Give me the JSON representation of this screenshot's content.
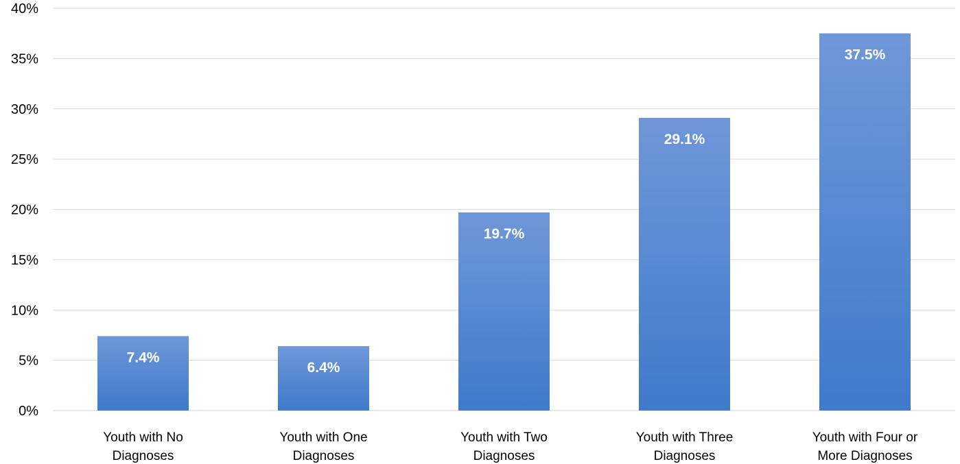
{
  "chart_data": {
    "type": "bar",
    "categories": [
      [
        "Youth with No",
        "Diagnoses"
      ],
      [
        "Youth with One",
        "Diagnoses"
      ],
      [
        "Youth with Two",
        "Diagnoses"
      ],
      [
        "Youth with Three",
        "Diagnoses"
      ],
      [
        "Youth with Four or",
        "More Diagnoses"
      ]
    ],
    "values": [
      7.4,
      6.4,
      19.7,
      29.1,
      37.5
    ],
    "data_labels": [
      "7.4%",
      "6.4%",
      "19.7%",
      "29.1%",
      "37.5%"
    ],
    "ylim": [
      0,
      40
    ],
    "y_ticks": [
      {
        "value": 0,
        "label": "0%"
      },
      {
        "value": 5,
        "label": "5%"
      },
      {
        "value": 10,
        "label": "10%"
      },
      {
        "value": 15,
        "label": "15%"
      },
      {
        "value": 20,
        "label": "20%"
      },
      {
        "value": 25,
        "label": "25%"
      },
      {
        "value": 30,
        "label": "30%"
      },
      {
        "value": 35,
        "label": "35%"
      },
      {
        "value": 40,
        "label": "40%"
      }
    ],
    "grid": true,
    "legend": "none",
    "colors": {
      "bar_top": "#6f97d8",
      "bar_bottom": "#3f7acb",
      "grid": "#d9d9d9",
      "data_label": "#ffffff"
    }
  }
}
